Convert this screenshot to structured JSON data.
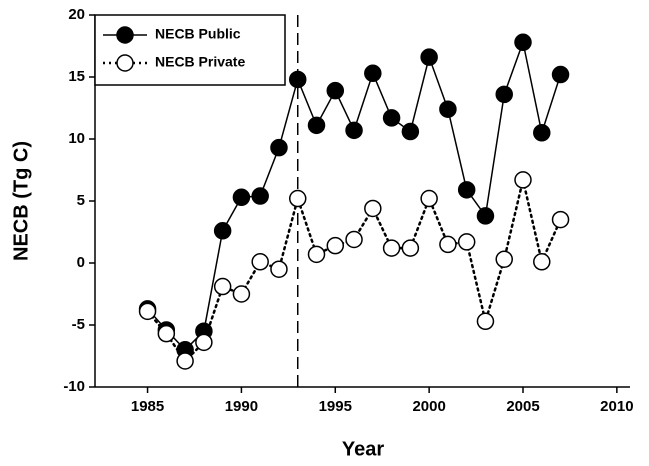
{
  "chart_data": {
    "type": "line",
    "x_label": "Year",
    "y_label": "NECB (Tg C)",
    "x": [
      1985,
      1986,
      1987,
      1988,
      1989,
      1990,
      1991,
      1992,
      1993,
      1994,
      1995,
      1996,
      1997,
      1998,
      1999,
      2000,
      2001,
      2002,
      2003,
      2004,
      2005,
      2006,
      2007
    ],
    "series": [
      {
        "name": "NECB Public",
        "color": "#000000",
        "marker": "filled",
        "dash": "solid",
        "values": [
          -3.7,
          -5.4,
          -7.0,
          -5.5,
          2.6,
          5.3,
          5.4,
          9.3,
          14.8,
          11.1,
          13.9,
          10.7,
          15.3,
          11.7,
          10.6,
          16.6,
          12.4,
          5.9,
          3.8,
          13.6,
          17.8,
          10.5,
          15.2
        ]
      },
      {
        "name": "NECB Private",
        "color": "#000000",
        "marker": "open",
        "dash": "dotted",
        "values": [
          -3.9,
          -5.7,
          -7.9,
          -6.4,
          -1.9,
          -2.5,
          0.1,
          -0.5,
          5.2,
          0.7,
          1.4,
          1.9,
          4.4,
          1.2,
          1.2,
          5.2,
          1.5,
          1.7,
          -4.7,
          0.3,
          6.7,
          0.1,
          3.5
        ]
      }
    ],
    "vline_x": 1993,
    "xlim": [
      1982.2,
      2010.7
    ],
    "xticks": [
      1985,
      1990,
      1995,
      2000,
      2005,
      2010
    ],
    "ylim": [
      -10,
      20
    ],
    "yticks": [
      -10,
      -5,
      0,
      5,
      10,
      15,
      20
    ],
    "legend": "top-left"
  }
}
